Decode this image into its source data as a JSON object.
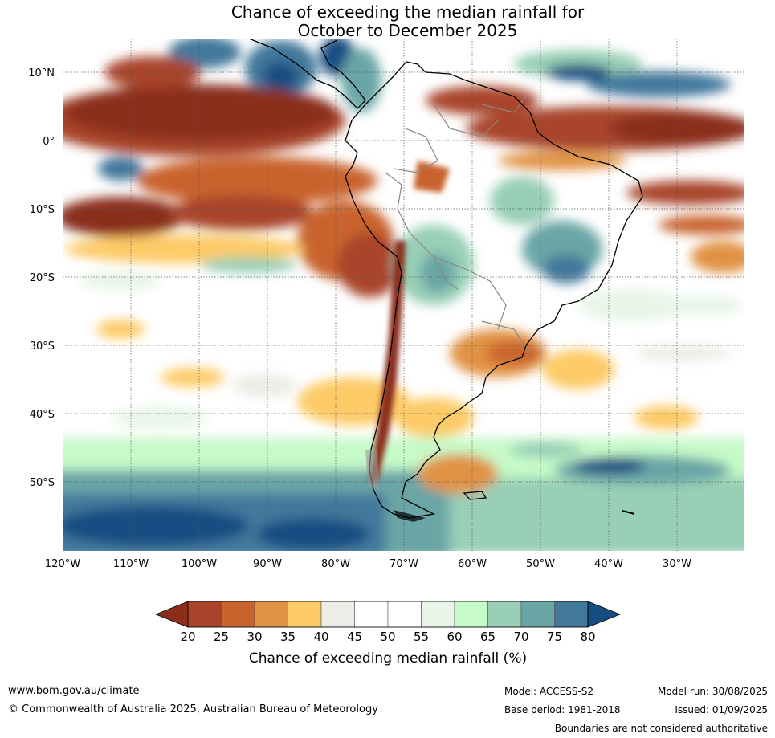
{
  "title": {
    "line1": "Chance of exceeding the median rainfall for",
    "line2": "October to December 2025"
  },
  "map": {
    "lat_labels": [
      "10°N",
      "0°",
      "10°S",
      "20°S",
      "30°S",
      "40°S",
      "50°S"
    ],
    "lon_labels": [
      "120°W",
      "110°W",
      "100°W",
      "90°W",
      "80°W",
      "70°W",
      "60°W",
      "50°W",
      "40°W",
      "30°W"
    ]
  },
  "colorbar": {
    "ticks": [
      "20",
      "25",
      "30",
      "35",
      "40",
      "45",
      "50",
      "55",
      "60",
      "65",
      "70",
      "75",
      "80"
    ],
    "colors": [
      "#8b2e1a",
      "#a9442a",
      "#c9642f",
      "#e19344",
      "#fdcb67",
      "#eeece7",
      "#ffffff",
      "#ffffff",
      "#e8f5e8",
      "#c6fac8",
      "#98cfb6",
      "#6aa6a6",
      "#42789b",
      "#134d82"
    ],
    "title": "Chance of exceeding median rainfall (%)"
  },
  "footer": {
    "website": "www.bom.gov.au/climate",
    "copyright": "© Commonwealth of Australia 2025, Australian Bureau of Meteorology",
    "model": "Model: ACCESS-S2",
    "base_period": "Base period: 1981-2018",
    "model_run": "Model run: 30/08/2025",
    "issued": "Issued: 01/09/2025",
    "disclaimer": "Boundaries are not considered authoritative"
  }
}
